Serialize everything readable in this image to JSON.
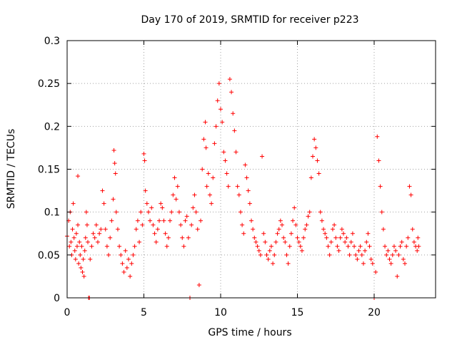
{
  "chart_data": {
    "type": "scatter",
    "title": "Day 170 of 2019, SRMTID for receiver p223",
    "xlabel": "GPS time / hours",
    "ylabel": "SRMTID / TECUs",
    "xlim": [
      0,
      24
    ],
    "ylim": [
      0,
      0.3
    ],
    "x_ticks": [
      0,
      5,
      10,
      15,
      20
    ],
    "x_tick_labels": [
      "0",
      "5",
      "10",
      "15",
      "20"
    ],
    "y_ticks": [
      0,
      0.05,
      0.1,
      0.15,
      0.2,
      0.25,
      0.3
    ],
    "y_tick_labels": [
      "0",
      "0.05",
      "0.1",
      "0.15",
      "0.2",
      "0.25",
      "0.3"
    ],
    "grid": true,
    "marker": "plus",
    "color": "#ff0000",
    "series": [
      {
        "name": "SRMTID",
        "points": [
          [
            0.0,
            0.072
          ],
          [
            0.1,
            0.09
          ],
          [
            0.15,
            0.06
          ],
          [
            0.2,
            0.1
          ],
          [
            0.25,
            0.065
          ],
          [
            0.3,
            0.05
          ],
          [
            0.35,
            0.08
          ],
          [
            0.4,
            0.11
          ],
          [
            0.45,
            0.07
          ],
          [
            0.5,
            0.055
          ],
          [
            0.55,
            0.045
          ],
          [
            0.6,
            0.075
          ],
          [
            0.65,
            0.06
          ],
          [
            0.7,
            0.085
          ],
          [
            0.75,
            0.04
          ],
          [
            0.8,
            0.065
          ],
          [
            0.85,
            0.05
          ],
          [
            0.9,
            0.035
          ],
          [
            0.95,
            0.06
          ],
          [
            1.0,
            0.03
          ],
          [
            1.05,
            0.045
          ],
          [
            1.1,
            0.025
          ],
          [
            1.15,
            0.055
          ],
          [
            1.2,
            0.07
          ],
          [
            1.25,
            0.1
          ],
          [
            1.3,
            0.085
          ],
          [
            1.35,
            0.065
          ],
          [
            1.4,
            0.0
          ],
          [
            1.45,
            0.0
          ],
          [
            0.7,
            0.142
          ],
          [
            1.5,
            0.045
          ],
          [
            1.6,
            0.06
          ],
          [
            1.7,
            0.075
          ],
          [
            1.8,
            0.07
          ],
          [
            1.9,
            0.085
          ],
          [
            2.0,
            0.065
          ],
          [
            2.1,
            0.075
          ],
          [
            2.2,
            0.08
          ],
          [
            2.3,
            0.125
          ],
          [
            2.4,
            0.11
          ],
          [
            2.5,
            0.08
          ],
          [
            2.6,
            0.06
          ],
          [
            2.7,
            0.05
          ],
          [
            2.8,
            0.07
          ],
          [
            2.9,
            0.09
          ],
          [
            3.0,
            0.115
          ],
          [
            3.05,
            0.172
          ],
          [
            3.1,
            0.157
          ],
          [
            3.15,
            0.145
          ],
          [
            3.2,
            0.1
          ],
          [
            3.3,
            0.08
          ],
          [
            3.4,
            0.06
          ],
          [
            3.5,
            0.05
          ],
          [
            3.6,
            0.04
          ],
          [
            3.7,
            0.03
          ],
          [
            3.8,
            0.055
          ],
          [
            3.9,
            0.035
          ],
          [
            4.0,
            0.045
          ],
          [
            4.1,
            0.025
          ],
          [
            4.2,
            0.04
          ],
          [
            4.3,
            0.05
          ],
          [
            4.4,
            0.06
          ],
          [
            4.5,
            0.08
          ],
          [
            4.6,
            0.09
          ],
          [
            4.7,
            0.065
          ],
          [
            4.8,
            0.1
          ],
          [
            4.9,
            0.085
          ],
          [
            5.0,
            0.168
          ],
          [
            5.05,
            0.16
          ],
          [
            5.1,
            0.125
          ],
          [
            5.2,
            0.11
          ],
          [
            5.3,
            0.1
          ],
          [
            5.4,
            0.09
          ],
          [
            5.5,
            0.105
          ],
          [
            5.6,
            0.085
          ],
          [
            5.7,
            0.075
          ],
          [
            5.8,
            0.065
          ],
          [
            5.9,
            0.08
          ],
          [
            6.0,
            0.09
          ],
          [
            6.1,
            0.11
          ],
          [
            6.2,
            0.105
          ],
          [
            6.3,
            0.09
          ],
          [
            6.4,
            0.075
          ],
          [
            6.5,
            0.06
          ],
          [
            6.6,
            0.07
          ],
          [
            6.7,
            0.09
          ],
          [
            6.8,
            0.1
          ],
          [
            6.9,
            0.12
          ],
          [
            7.0,
            0.14
          ],
          [
            7.1,
            0.115
          ],
          [
            7.2,
            0.13
          ],
          [
            7.3,
            0.1
          ],
          [
            7.4,
            0.085
          ],
          [
            7.5,
            0.07
          ],
          [
            7.6,
            0.06
          ],
          [
            7.7,
            0.09
          ],
          [
            7.8,
            0.095
          ],
          [
            7.9,
            0.07
          ],
          [
            8.0,
            0.0
          ],
          [
            8.1,
            0.085
          ],
          [
            8.2,
            0.105
          ],
          [
            8.3,
            0.12
          ],
          [
            8.4,
            0.1
          ],
          [
            8.5,
            0.08
          ],
          [
            8.6,
            0.015
          ],
          [
            8.7,
            0.09
          ],
          [
            8.8,
            0.15
          ],
          [
            8.9,
            0.185
          ],
          [
            9.0,
            0.205
          ],
          [
            9.05,
            0.175
          ],
          [
            9.1,
            0.13
          ],
          [
            9.2,
            0.145
          ],
          [
            9.3,
            0.12
          ],
          [
            9.4,
            0.11
          ],
          [
            9.5,
            0.14
          ],
          [
            9.6,
            0.18
          ],
          [
            9.7,
            0.2
          ],
          [
            9.8,
            0.23
          ],
          [
            9.9,
            0.25
          ],
          [
            10.0,
            0.22
          ],
          [
            10.1,
            0.205
          ],
          [
            10.2,
            0.17
          ],
          [
            10.3,
            0.16
          ],
          [
            10.4,
            0.145
          ],
          [
            10.5,
            0.13
          ],
          [
            10.6,
            0.255
          ],
          [
            10.7,
            0.24
          ],
          [
            10.8,
            0.215
          ],
          [
            10.9,
            0.195
          ],
          [
            11.0,
            0.17
          ],
          [
            11.1,
            0.13
          ],
          [
            11.2,
            0.12
          ],
          [
            11.3,
            0.1
          ],
          [
            11.4,
            0.085
          ],
          [
            11.5,
            0.075
          ],
          [
            11.6,
            0.155
          ],
          [
            11.7,
            0.14
          ],
          [
            11.8,
            0.125
          ],
          [
            11.9,
            0.11
          ],
          [
            12.0,
            0.09
          ],
          [
            12.1,
            0.08
          ],
          [
            12.2,
            0.07
          ],
          [
            12.3,
            0.065
          ],
          [
            12.4,
            0.06
          ],
          [
            12.5,
            0.055
          ],
          [
            12.6,
            0.05
          ],
          [
            12.7,
            0.165
          ],
          [
            12.8,
            0.075
          ],
          [
            12.9,
            0.065
          ],
          [
            13.0,
            0.05
          ],
          [
            13.1,
            0.045
          ],
          [
            13.2,
            0.055
          ],
          [
            13.3,
            0.06
          ],
          [
            13.4,
            0.04
          ],
          [
            13.5,
            0.05
          ],
          [
            13.6,
            0.065
          ],
          [
            13.7,
            0.075
          ],
          [
            13.8,
            0.08
          ],
          [
            13.9,
            0.09
          ],
          [
            14.0,
            0.085
          ],
          [
            14.1,
            0.07
          ],
          [
            14.2,
            0.065
          ],
          [
            14.3,
            0.05
          ],
          [
            14.4,
            0.04
          ],
          [
            14.5,
            0.06
          ],
          [
            14.6,
            0.075
          ],
          [
            14.7,
            0.09
          ],
          [
            14.8,
            0.105
          ],
          [
            14.9,
            0.085
          ],
          [
            15.0,
            0.07
          ],
          [
            15.1,
            0.065
          ],
          [
            15.2,
            0.06
          ],
          [
            15.3,
            0.055
          ],
          [
            15.4,
            0.07
          ],
          [
            15.5,
            0.08
          ],
          [
            15.6,
            0.085
          ],
          [
            15.7,
            0.095
          ],
          [
            15.8,
            0.1
          ],
          [
            15.9,
            0.14
          ],
          [
            16.0,
            0.165
          ],
          [
            16.1,
            0.185
          ],
          [
            16.2,
            0.175
          ],
          [
            16.3,
            0.16
          ],
          [
            16.4,
            0.145
          ],
          [
            16.5,
            0.1
          ],
          [
            16.6,
            0.09
          ],
          [
            16.7,
            0.08
          ],
          [
            16.8,
            0.075
          ],
          [
            16.9,
            0.07
          ],
          [
            17.0,
            0.06
          ],
          [
            17.1,
            0.05
          ],
          [
            17.2,
            0.065
          ],
          [
            17.3,
            0.08
          ],
          [
            17.4,
            0.085
          ],
          [
            17.5,
            0.07
          ],
          [
            17.6,
            0.06
          ],
          [
            17.7,
            0.055
          ],
          [
            17.8,
            0.07
          ],
          [
            17.9,
            0.08
          ],
          [
            18.0,
            0.075
          ],
          [
            18.1,
            0.065
          ],
          [
            18.2,
            0.07
          ],
          [
            18.3,
            0.06
          ],
          [
            18.4,
            0.05
          ],
          [
            18.5,
            0.065
          ],
          [
            18.6,
            0.075
          ],
          [
            18.7,
            0.06
          ],
          [
            18.8,
            0.05
          ],
          [
            18.9,
            0.045
          ],
          [
            19.0,
            0.055
          ],
          [
            19.1,
            0.06
          ],
          [
            19.2,
            0.05
          ],
          [
            19.3,
            0.04
          ],
          [
            19.4,
            0.055
          ],
          [
            19.5,
            0.065
          ],
          [
            19.6,
            0.075
          ],
          [
            19.7,
            0.06
          ],
          [
            19.8,
            0.045
          ],
          [
            19.9,
            0.04
          ],
          [
            20.0,
            0.0
          ],
          [
            20.1,
            0.03
          ],
          [
            20.2,
            0.188
          ],
          [
            20.3,
            0.16
          ],
          [
            20.4,
            0.13
          ],
          [
            20.5,
            0.1
          ],
          [
            20.6,
            0.08
          ],
          [
            20.7,
            0.06
          ],
          [
            20.8,
            0.05
          ],
          [
            20.9,
            0.055
          ],
          [
            21.0,
            0.045
          ],
          [
            21.1,
            0.04
          ],
          [
            21.2,
            0.05
          ],
          [
            21.3,
            0.06
          ],
          [
            21.4,
            0.055
          ],
          [
            21.5,
            0.025
          ],
          [
            21.6,
            0.05
          ],
          [
            21.7,
            0.06
          ],
          [
            21.8,
            0.065
          ],
          [
            21.9,
            0.045
          ],
          [
            22.0,
            0.04
          ],
          [
            22.1,
            0.06
          ],
          [
            22.2,
            0.07
          ],
          [
            22.3,
            0.13
          ],
          [
            22.4,
            0.12
          ],
          [
            22.5,
            0.08
          ],
          [
            22.6,
            0.065
          ],
          [
            22.7,
            0.06
          ],
          [
            22.8,
            0.055
          ],
          [
            22.85,
            0.07
          ],
          [
            22.9,
            0.06
          ]
        ]
      }
    ]
  }
}
